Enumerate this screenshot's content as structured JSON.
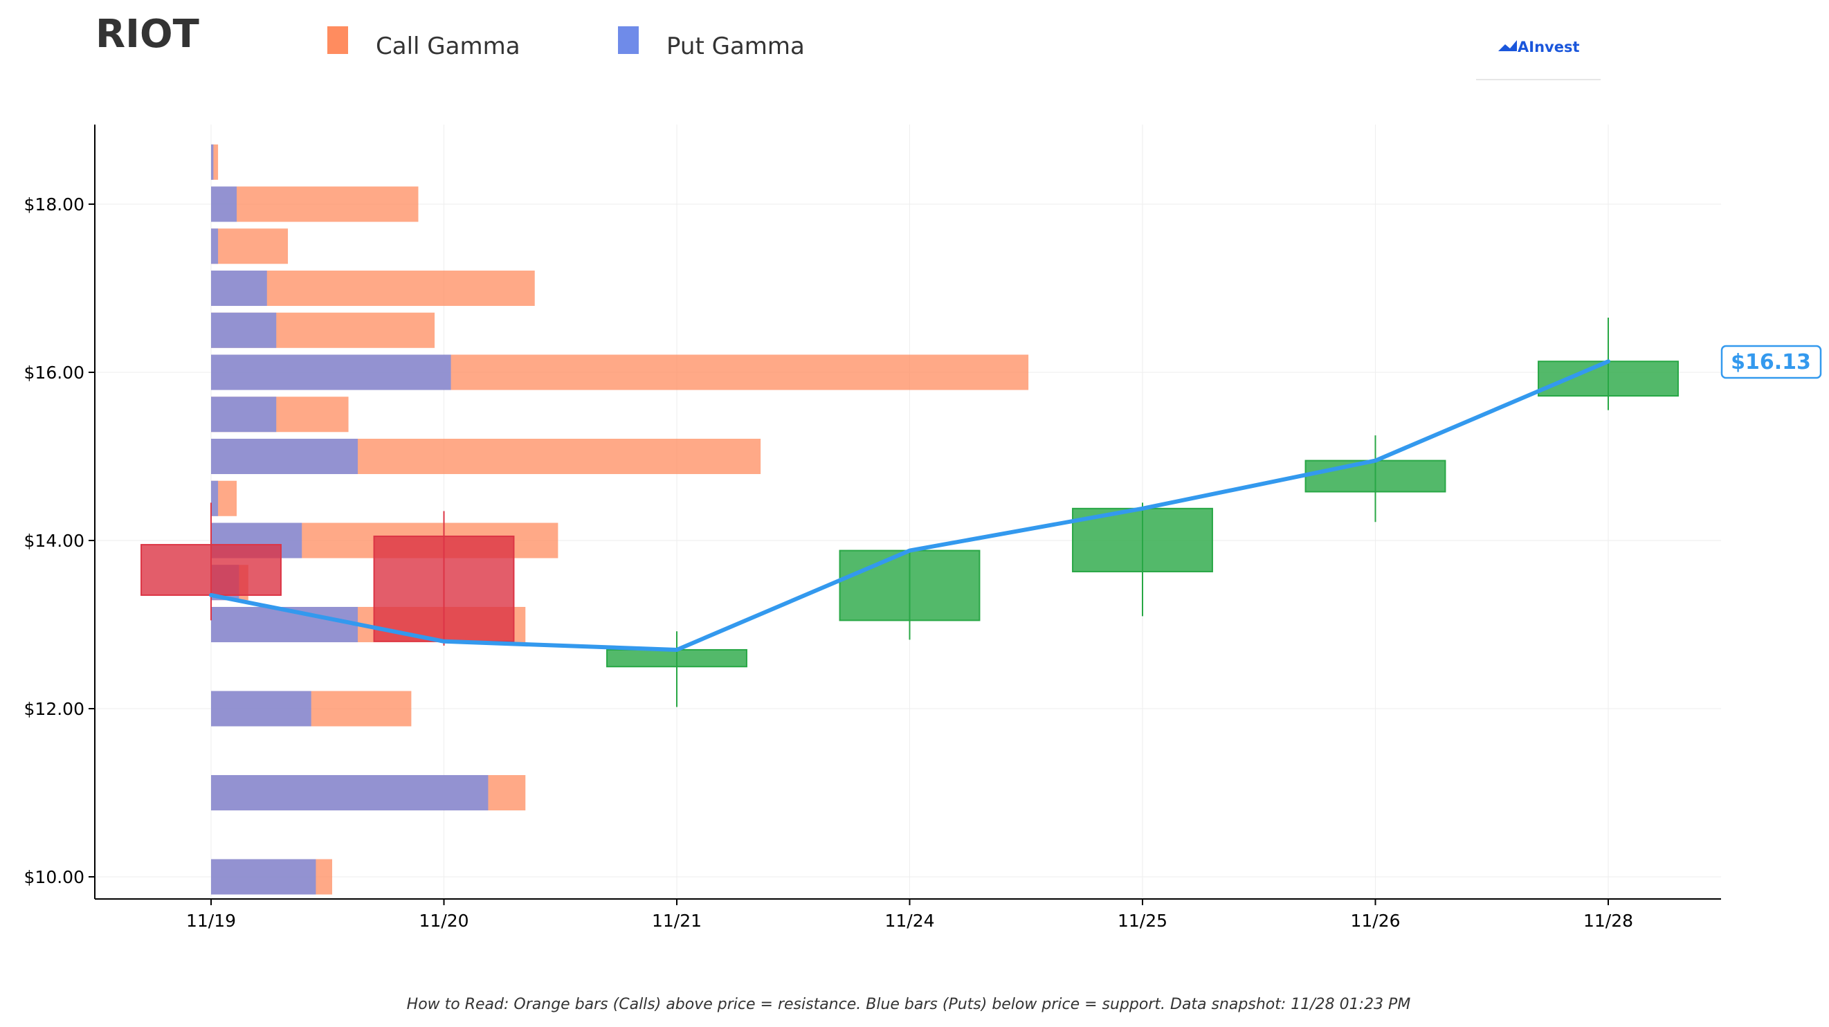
{
  "header": {
    "title": "RIOT",
    "brand": "AInvest"
  },
  "legend": [
    {
      "label": "Call Gamma",
      "color": "#ff8c5f"
    },
    {
      "label": "Put Gamma",
      "color": "#6f8be9"
    }
  ],
  "footnote": "How to Read: Orange bars (Calls) above price = resistance. Blue bars (Puts) below price = support. Data snapshot: 11/28 01:23 PM",
  "current_price_label": "$16.13",
  "colors": {
    "call": "#ff8c5f",
    "put": "#6f8be9",
    "up": "#28a745",
    "down": "#dc3545",
    "price_line": "#3399ee",
    "brand": "#1a56db"
  },
  "chart_data": {
    "type": "candlestick with horizontal gamma bars",
    "x_categories": [
      "11/19",
      "11/20",
      "11/21",
      "11/24",
      "11/25",
      "11/26",
      "11/28"
    ],
    "y_ticks": [
      10,
      12,
      14,
      16,
      18
    ],
    "y_tick_labels": [
      "$10.00",
      "$12.00",
      "$14.00",
      "$16.00",
      "$18.00"
    ],
    "ylim": [
      9.75,
      18.95
    ],
    "xlim": [
      -0.5,
      6.5
    ],
    "grid": true,
    "legend_position": "top",
    "candles": [
      {
        "date": "11/19",
        "open": 13.95,
        "close": 13.35,
        "high": 14.45,
        "low": 13.05
      },
      {
        "date": "11/20",
        "open": 14.05,
        "close": 12.8,
        "high": 14.35,
        "low": 12.75
      },
      {
        "date": "11/21",
        "open": 12.5,
        "close": 12.7,
        "high": 12.92,
        "low": 12.02
      },
      {
        "date": "11/24",
        "open": 13.05,
        "close": 13.88,
        "high": 13.88,
        "low": 12.82
      },
      {
        "date": "11/25",
        "open": 13.63,
        "close": 14.38,
        "high": 14.45,
        "low": 13.1
      },
      {
        "date": "11/26",
        "open": 14.58,
        "close": 14.95,
        "high": 15.25,
        "low": 14.22
      },
      {
        "date": "11/28",
        "open": 15.72,
        "close": 16.13,
        "high": 16.65,
        "low": 15.55
      }
    ],
    "price_line": [
      13.35,
      12.8,
      12.7,
      13.88,
      14.38,
      14.95,
      16.13
    ],
    "gamma_units": "x-axis days from 11/19",
    "gamma_bars": [
      {
        "strike": 18.5,
        "put": 0.01,
        "call": 0.03
      },
      {
        "strike": 18.0,
        "put": 0.11,
        "call": 0.89
      },
      {
        "strike": 17.5,
        "put": 0.03,
        "call": 0.33
      },
      {
        "strike": 17.0,
        "put": 0.24,
        "call": 1.39
      },
      {
        "strike": 16.5,
        "put": 0.28,
        "call": 0.96
      },
      {
        "strike": 16.0,
        "put": 1.03,
        "call": 3.51
      },
      {
        "strike": 15.5,
        "put": 0.28,
        "call": 0.59
      },
      {
        "strike": 15.0,
        "put": 0.63,
        "call": 2.36
      },
      {
        "strike": 14.5,
        "put": 0.03,
        "call": 0.11
      },
      {
        "strike": 14.0,
        "put": 0.39,
        "call": 1.49
      },
      {
        "strike": 13.5,
        "put": 0.12,
        "call": 0.16
      },
      {
        "strike": 13.0,
        "put": 0.63,
        "call": 1.35
      },
      {
        "strike": 12.0,
        "put": 0.43,
        "call": 0.86
      },
      {
        "strike": 11.0,
        "put": 1.19,
        "call": 1.35
      },
      {
        "strike": 10.0,
        "put": 0.45,
        "call": 0.52
      }
    ]
  }
}
